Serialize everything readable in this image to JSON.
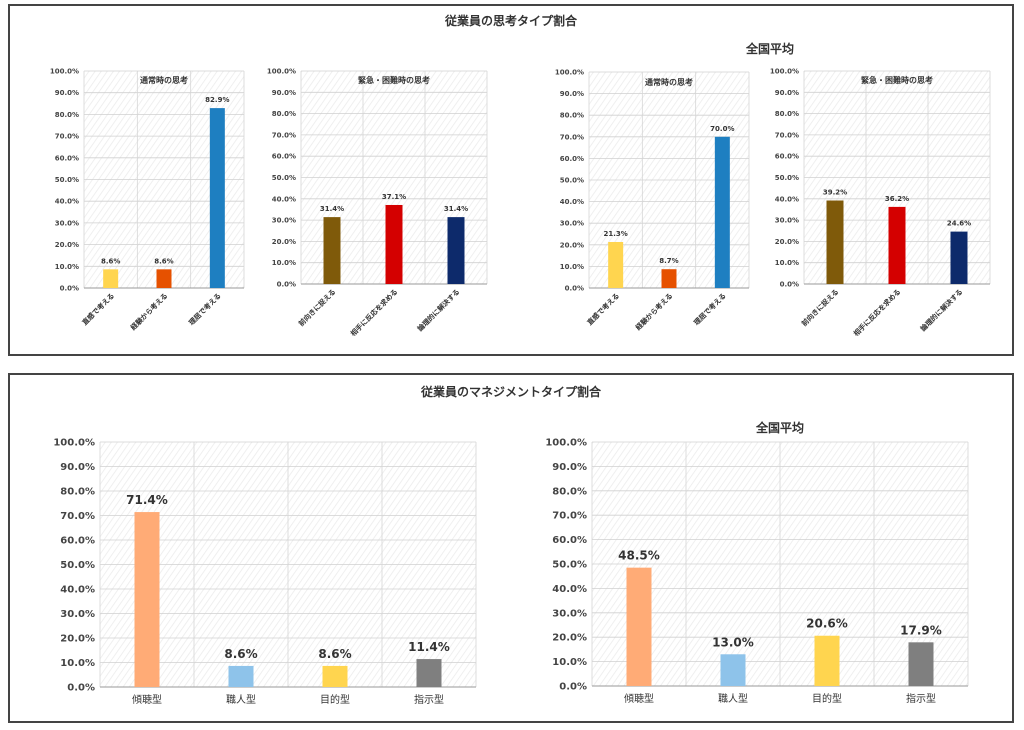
{
  "top_panel": {
    "title": "従業員の思考タイプ割合",
    "national_label": "全国平均"
  },
  "bottom_panel": {
    "title": "従業員のマネジメントタイプ割合",
    "national_label": "全国平均"
  },
  "chart_data": [
    {
      "id": "c1",
      "type": "bar",
      "title": "通常時の思考",
      "categories": [
        "直感で考える",
        "経験から考える",
        "理屈で考える"
      ],
      "values": [
        8.6,
        8.6,
        82.9
      ],
      "labels": [
        "8.6%",
        "8.6%",
        "82.9%"
      ],
      "colors": [
        "#FFD54F",
        "#E65100",
        "#1E7FC1"
      ],
      "yticks": [
        "0.0%",
        "10.0%",
        "20.0%",
        "30.0%",
        "40.0%",
        "50.0%",
        "60.0%",
        "70.0%",
        "80.0%",
        "90.0%",
        "100.0%"
      ],
      "ylim": [
        0,
        100
      ]
    },
    {
      "id": "c2",
      "type": "bar",
      "title": "緊急・困難時の思考",
      "categories": [
        "前向きに捉える",
        "相手に反応を求める",
        "論理的に解決する"
      ],
      "values": [
        31.4,
        37.1,
        31.4
      ],
      "labels": [
        "31.4%",
        "37.1%",
        "31.4%"
      ],
      "colors": [
        "#7F5A0A",
        "#D40000",
        "#0D2A6B"
      ],
      "yticks": [
        "0.0%",
        "10.0%",
        "20.0%",
        "30.0%",
        "40.0%",
        "50.0%",
        "60.0%",
        "70.0%",
        "80.0%",
        "90.0%",
        "100.0%"
      ],
      "ylim": [
        0,
        100
      ]
    },
    {
      "id": "c3",
      "type": "bar",
      "title": "通常時の思考",
      "categories": [
        "直感で考える",
        "経験から考える",
        "理屈で考える"
      ],
      "values": [
        21.3,
        8.7,
        70.0
      ],
      "labels": [
        "21.3%",
        "8.7%",
        "70.0%"
      ],
      "colors": [
        "#FFD54F",
        "#E65100",
        "#1E7FC1"
      ],
      "yticks": [
        "0.0%",
        "10.0%",
        "20.0%",
        "30.0%",
        "40.0%",
        "50.0%",
        "60.0%",
        "70.0%",
        "80.0%",
        "90.0%",
        "100.0%"
      ],
      "ylim": [
        0,
        100
      ]
    },
    {
      "id": "c4",
      "type": "bar",
      "title": "緊急・困難時の思考",
      "categories": [
        "前向きに捉える",
        "相手に反応を求める",
        "論理的に解決する"
      ],
      "values": [
        39.2,
        36.2,
        24.6
      ],
      "labels": [
        "39.2%",
        "36.2%",
        "24.6%"
      ],
      "colors": [
        "#7F5A0A",
        "#D40000",
        "#0D2A6B"
      ],
      "yticks": [
        "0.0%",
        "10.0%",
        "20.0%",
        "30.0%",
        "40.0%",
        "50.0%",
        "60.0%",
        "70.0%",
        "80.0%",
        "90.0%",
        "100.0%"
      ],
      "ylim": [
        0,
        100
      ]
    },
    {
      "id": "c5",
      "type": "bar",
      "title": "",
      "categories": [
        "傾聴型",
        "職人型",
        "目的型",
        "指示型"
      ],
      "values": [
        71.4,
        8.6,
        8.6,
        11.4
      ],
      "labels": [
        "71.4%",
        "8.6%",
        "8.6%",
        "11.4%"
      ],
      "colors": [
        "#FFAB76",
        "#8EC3EA",
        "#FFD54F",
        "#7F7F7F"
      ],
      "yticks": [
        "0.0%",
        "10.0%",
        "20.0%",
        "30.0%",
        "40.0%",
        "50.0%",
        "60.0%",
        "70.0%",
        "80.0%",
        "90.0%",
        "100.0%"
      ],
      "ylim": [
        0,
        100
      ]
    },
    {
      "id": "c6",
      "type": "bar",
      "title": "",
      "categories": [
        "傾聴型",
        "職人型",
        "目的型",
        "指示型"
      ],
      "values": [
        48.5,
        13.0,
        20.6,
        17.9
      ],
      "labels": [
        "48.5%",
        "13.0%",
        "20.6%",
        "17.9%"
      ],
      "colors": [
        "#FFAB76",
        "#8EC3EA",
        "#FFD54F",
        "#7F7F7F"
      ],
      "yticks": [
        "0.0%",
        "10.0%",
        "20.0%",
        "30.0%",
        "40.0%",
        "50.0%",
        "60.0%",
        "70.0%",
        "80.0%",
        "90.0%",
        "100.0%"
      ],
      "ylim": [
        0,
        100
      ]
    }
  ]
}
